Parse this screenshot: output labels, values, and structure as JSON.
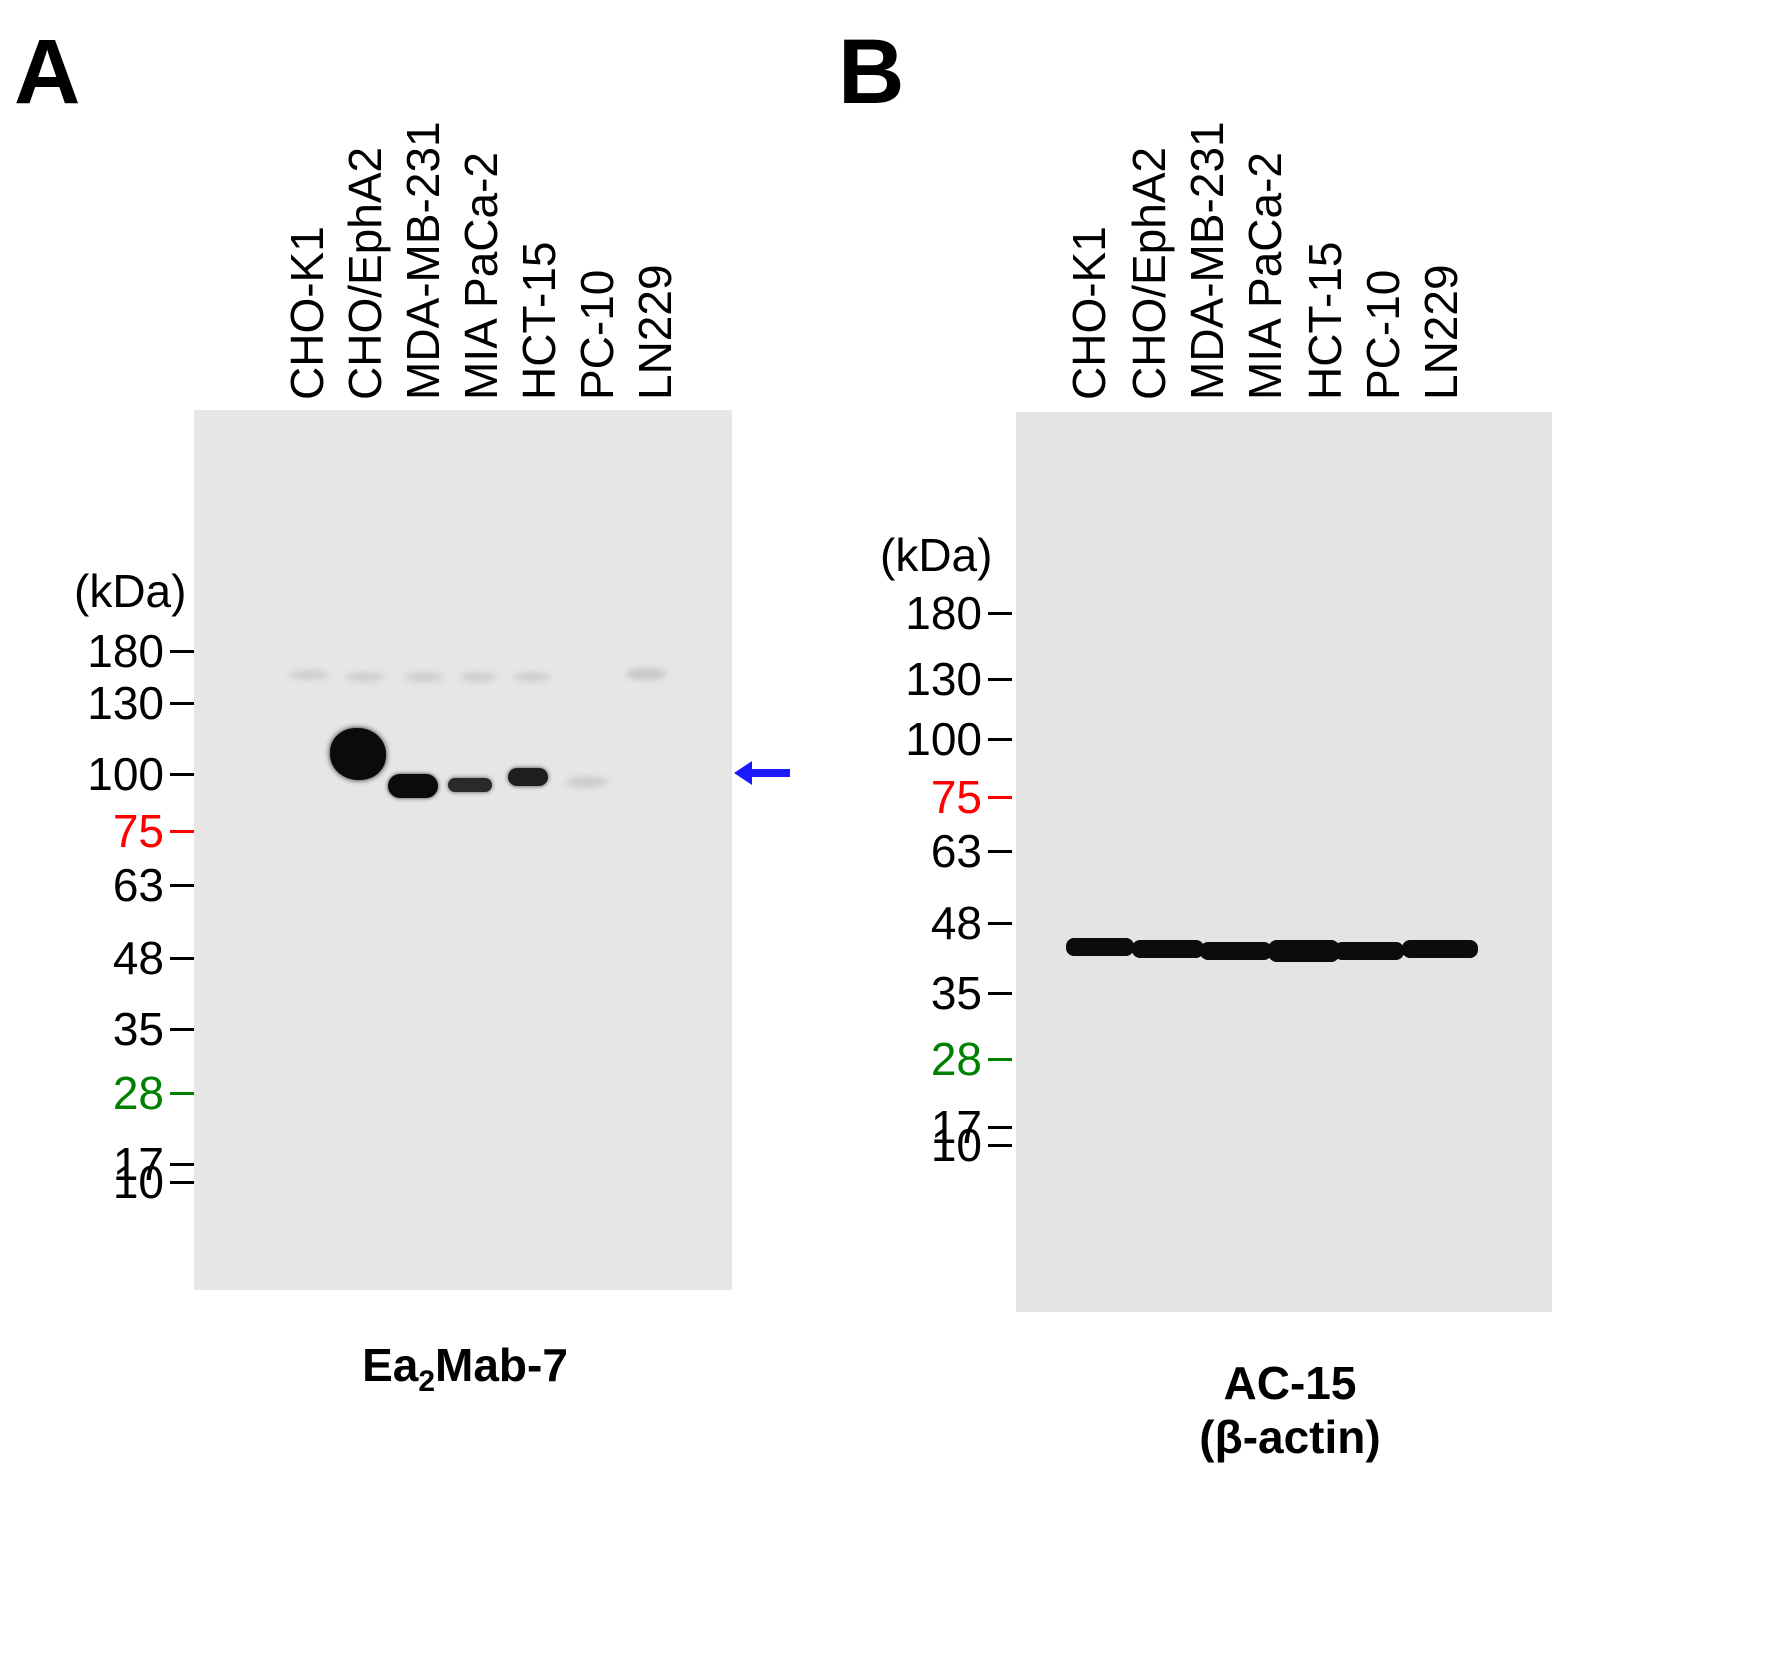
{
  "panels": [
    {
      "letter": "A",
      "lanes": [
        "CHO-K1",
        "CHO/EphA2",
        "MDA-MB-231",
        "MIA PaCa-2",
        "HCT-15",
        "PC-10",
        "LN229"
      ],
      "mw_unit": "(kDa)",
      "markers": [
        {
          "label": "180",
          "color": "#000000"
        },
        {
          "label": "130",
          "color": "#000000"
        },
        {
          "label": "100",
          "color": "#000000"
        },
        {
          "label": "75",
          "color": "#ff0000"
        },
        {
          "label": "63",
          "color": "#000000"
        },
        {
          "label": "48",
          "color": "#000000"
        },
        {
          "label": "35",
          "color": "#000000"
        },
        {
          "label": "28",
          "color": "#008000"
        },
        {
          "label": "17",
          "color": "#000000"
        },
        {
          "label": "10",
          "color": "#000000"
        }
      ],
      "caption_main": "Ea",
      "caption_sub": "2",
      "caption_rest": "Mab-7",
      "arrow_color": "#1a1aff"
    },
    {
      "letter": "B",
      "lanes": [
        "CHO-K1",
        "CHO/EphA2",
        "MDA-MB-231",
        "MIA PaCa-2",
        "HCT-15",
        "PC-10",
        "LN229"
      ],
      "mw_unit": "(kDa)",
      "markers": [
        {
          "label": "180",
          "color": "#000000"
        },
        {
          "label": "130",
          "color": "#000000"
        },
        {
          "label": "100",
          "color": "#000000"
        },
        {
          "label": "75",
          "color": "#ff0000"
        },
        {
          "label": "63",
          "color": "#000000"
        },
        {
          "label": "48",
          "color": "#000000"
        },
        {
          "label": "35",
          "color": "#000000"
        },
        {
          "label": "28",
          "color": "#008000"
        },
        {
          "label": "17",
          "color": "#000000"
        },
        {
          "label": "10",
          "color": "#000000"
        }
      ],
      "caption_line1": "AC-15",
      "caption_line2": "(β-actin)"
    }
  ]
}
